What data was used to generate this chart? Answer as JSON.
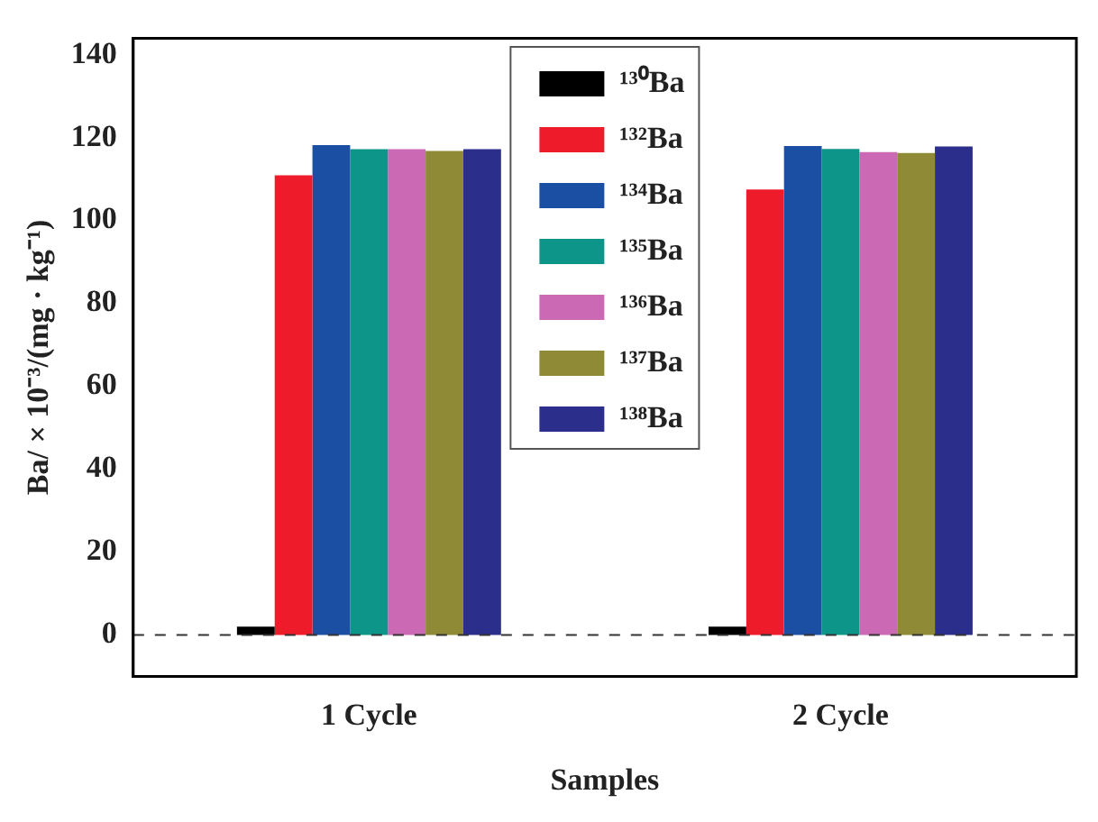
{
  "chart_data": {
    "type": "bar",
    "xlabel": "Samples",
    "ylabel": "Ba/ × 10⁻³/(mg · kg⁻¹)",
    "categories": [
      "1 Cycle",
      "2 Cycle"
    ],
    "series": [
      {
        "name": "¹³⁰Ba",
        "color": "#000000",
        "values": [
          2,
          2
        ]
      },
      {
        "name": "¹³²Ba",
        "color": "#ee1c2b",
        "values": [
          110.9,
          107.5
        ]
      },
      {
        "name": "¹³⁴Ba",
        "color": "#1a4fa3",
        "values": [
          118.2,
          118
        ]
      },
      {
        "name": "¹³⁵Ba",
        "color": "#0e958a",
        "values": [
          117.2,
          117.3
        ]
      },
      {
        "name": "¹³⁶Ba",
        "color": "#cc69b4",
        "values": [
          117.2,
          116.5
        ]
      },
      {
        "name": "¹³⁷Ba",
        "color": "#8f8a35",
        "values": [
          116.8,
          116.3
        ]
      },
      {
        "name": "¹³⁸Ba",
        "color": "#2c2e8c",
        "values": [
          117.2,
          117.9
        ]
      }
    ],
    "ylim": [
      -10,
      144
    ],
    "yticks": [
      0,
      20,
      40,
      60,
      80,
      100,
      120,
      140
    ],
    "ref_lines": [
      {
        "axis": "y",
        "value": 0,
        "line_style": "dashed",
        "color": "#333333"
      }
    ],
    "legend": "top",
    "grid": false
  }
}
